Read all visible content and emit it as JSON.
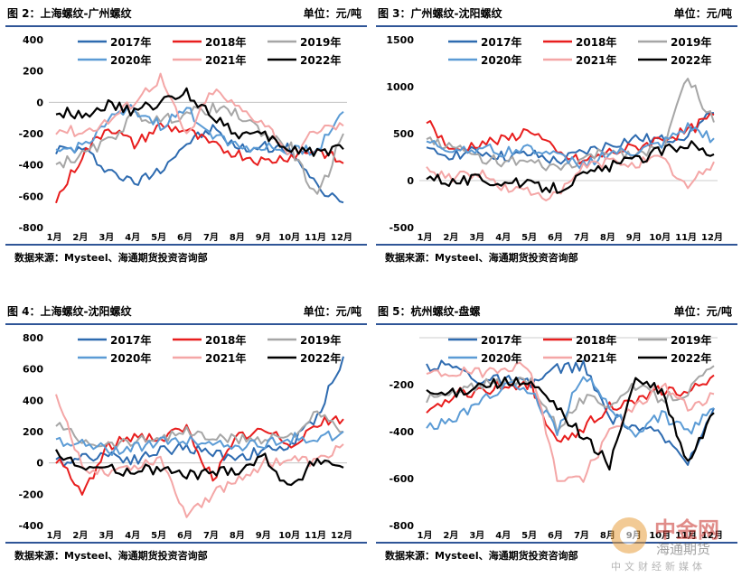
{
  "panels": [
    {
      "title": "图 2：上海螺纹-广州螺纹",
      "unit": "单位：元/吨",
      "source": "数据来源：Mysteel、海通期货投资咨询部",
      "chart_data": {
        "type": "line",
        "ylim": [
          -800,
          400
        ],
        "yticks": [
          400,
          200,
          0,
          -200,
          -400,
          -600,
          -800
        ],
        "ytick_labels": [
          "400",
          "200",
          "0",
          "-200",
          "-400",
          "-600",
          "-800"
        ],
        "xticks": [
          "1月",
          "2月",
          "3月",
          "4月",
          "5月",
          "6月",
          "7月",
          "8月",
          "9月",
          "10月",
          "11月",
          "12月"
        ],
        "series": [
          {
            "name": "2017年",
            "color": "#2e6bb0",
            "values": [
              -300,
              -300,
              -430,
              -520,
              -420,
              -260,
              -170,
              -300,
              -280,
              -300,
              -550,
              -640
            ]
          },
          {
            "name": "2018年",
            "color": "#e81e1e",
            "values": [
              -630,
              -340,
              -150,
              -270,
              -150,
              -180,
              -280,
              -330,
              -380,
              -340,
              -300,
              -390
            ]
          },
          {
            "name": "2019年",
            "color": "#a6a6a6",
            "values": [
              -400,
              -340,
              -250,
              -80,
              -120,
              -70,
              -40,
              -80,
              -200,
              -290,
              -620,
              -200
            ]
          },
          {
            "name": "2020年",
            "color": "#5b9bd5",
            "values": [
              -320,
              -280,
              -120,
              -40,
              -150,
              -50,
              -200,
              -280,
              -290,
              -310,
              -300,
              -60
            ]
          },
          {
            "name": "2021年",
            "color": "#f4a6a6",
            "values": [
              -170,
              -190,
              -120,
              10,
              160,
              -220,
              80,
              -40,
              -130,
              -340,
              -170,
              -150
            ]
          },
          {
            "name": "2022年",
            "color": "#000000",
            "values": [
              -60,
              -70,
              -20,
              -60,
              0,
              60,
              -80,
              -200,
              -220,
              -300,
              -310,
              -300
            ]
          }
        ]
      }
    },
    {
      "title": "图 3：广州螺纹-沈阳螺纹",
      "unit": "单位：元/吨",
      "source": "数据来源：Mysteel、海通期货投资咨询部",
      "chart_data": {
        "type": "line",
        "ylim": [
          -500,
          1500
        ],
        "yticks": [
          1500,
          1000,
          500,
          0,
          -500
        ],
        "ytick_labels": [
          "1500",
          "1000",
          "500",
          "0",
          "-500"
        ],
        "xticks": [
          "1月",
          "2月",
          "3月",
          "4月",
          "5月",
          "6月",
          "7月",
          "8月",
          "9月",
          "10月",
          "11月",
          "12月"
        ],
        "series": [
          {
            "name": "2017年",
            "color": "#2e6bb0",
            "values": [
              300,
              280,
              310,
              250,
              280,
              200,
              300,
              380,
              450,
              430,
              500,
              720
            ]
          },
          {
            "name": "2018年",
            "color": "#e81e1e",
            "values": [
              650,
              300,
              400,
              430,
              550,
              280,
              200,
              300,
              350,
              450,
              520,
              700
            ]
          },
          {
            "name": "2019年",
            "color": "#a6a6a6",
            "values": [
              450,
              350,
              250,
              200,
              180,
              120,
              220,
              320,
              280,
              330,
              1100,
              620
            ]
          },
          {
            "name": "2020年",
            "color": "#5b9bd5",
            "values": [
              400,
              330,
              350,
              300,
              360,
              250,
              180,
              290,
              300,
              380,
              560,
              450
            ]
          },
          {
            "name": "2021年",
            "color": "#f4a6a6",
            "values": [
              100,
              50,
              80,
              -80,
              -120,
              -180,
              150,
              200,
              190,
              230,
              -80,
              200
            ]
          },
          {
            "name": "2022年",
            "color": "#000000",
            "values": [
              60,
              -10,
              20,
              -20,
              -50,
              -80,
              50,
              150,
              220,
              320,
              400,
              280
            ]
          }
        ]
      }
    },
    {
      "title": "图 4：上海螺纹-沈阳螺纹",
      "unit": "单位：元/吨",
      "source": "数据来源：Mysteel、海通期货投资咨询部",
      "chart_data": {
        "type": "line",
        "ylim": [
          -400,
          800
        ],
        "yticks": [
          800,
          600,
          400,
          200,
          0,
          -200,
          -400
        ],
        "ytick_labels": [
          "800",
          "600",
          "400",
          "200",
          "0",
          "-200",
          "-400"
        ],
        "xticks": [
          "1月",
          "2月",
          "3月",
          "4月",
          "5月",
          "6月",
          "7月",
          "8月",
          "9月",
          "10月",
          "11月",
          "12月"
        ],
        "series": [
          {
            "name": "2017年",
            "color": "#2e6bb0",
            "values": [
              0,
              40,
              60,
              20,
              80,
              100,
              60,
              40,
              80,
              110,
              300,
              680
            ]
          },
          {
            "name": "2018年",
            "color": "#e81e1e",
            "values": [
              30,
              -200,
              100,
              180,
              150,
              220,
              -100,
              170,
              200,
              120,
              250,
              280
            ]
          },
          {
            "name": "2019年",
            "color": "#a6a6a6",
            "values": [
              250,
              150,
              120,
              140,
              170,
              200,
              160,
              150,
              160,
              180,
              310,
              200
            ]
          },
          {
            "name": "2020年",
            "color": "#5b9bd5",
            "values": [
              150,
              120,
              80,
              100,
              130,
              150,
              120,
              110,
              120,
              160,
              150,
              200
            ]
          },
          {
            "name": "2021年",
            "color": "#f4a6a6",
            "values": [
              420,
              -30,
              -50,
              -20,
              30,
              -320,
              -200,
              -100,
              0,
              20,
              0,
              120
            ]
          },
          {
            "name": "2022年",
            "color": "#000000",
            "values": [
              50,
              -20,
              -40,
              -50,
              -40,
              -80,
              -60,
              -40,
              40,
              -170,
              30,
              -30
            ]
          }
        ]
      }
    },
    {
      "title": "图 5：杭州螺纹-盘螺",
      "unit": "单位：元/吨",
      "source": "数据来源：Mysteel、海通期货投资咨询部",
      "chart_data": {
        "type": "line",
        "ylim": [
          -800,
          0
        ],
        "yticks": [
          -200,
          -400,
          -600,
          -800
        ],
        "ytick_labels": [
          "-200",
          "-400",
          "-600",
          "-800"
        ],
        "xticks": [
          "1月",
          "2月",
          "3月",
          "4月",
          "5月",
          "6月",
          "7月",
          "8月",
          "9月",
          "10月",
          "11月",
          "12月"
        ],
        "series": [
          {
            "name": "2017年",
            "color": "#2e6bb0",
            "values": [
              -120,
              -120,
              -180,
              -180,
              -200,
              -130,
              -120,
              -340,
              -380,
              -420,
              -520,
              -300
            ]
          },
          {
            "name": "2018年",
            "color": "#e81e1e",
            "values": [
              -340,
              -240,
              -230,
              -200,
              -200,
              -460,
              -380,
              -290,
              -280,
              -220,
              -240,
              -160
            ]
          },
          {
            "name": "2019年",
            "color": "#a6a6a6",
            "values": [
              -260,
              -240,
              -200,
              -200,
              -180,
              -380,
              -260,
              -280,
              -210,
              -260,
              -230,
              -120
            ]
          },
          {
            "name": "2020年",
            "color": "#5b9bd5",
            "values": [
              -380,
              -360,
              -270,
              -200,
              -230,
              -400,
              -150,
              -300,
              -400,
              -330,
              -400,
              -300
            ]
          },
          {
            "name": "2021年",
            "color": "#f4a6a6",
            "values": [
              -160,
              -150,
              -150,
              -120,
              -130,
              -600,
              -600,
              -400,
              -300,
              -200,
              -300,
              -240
            ]
          },
          {
            "name": "2022年",
            "color": "#000000",
            "values": [
              -240,
              -240,
              -200,
              -190,
              -200,
              -300,
              -420,
              -540,
              -180,
              -230,
              -540,
              -320
            ]
          }
        ]
      }
    }
  ],
  "watermark": {
    "brand": "中金网",
    "sub": "海通期货",
    "tagline": "中文财经新媒体"
  }
}
